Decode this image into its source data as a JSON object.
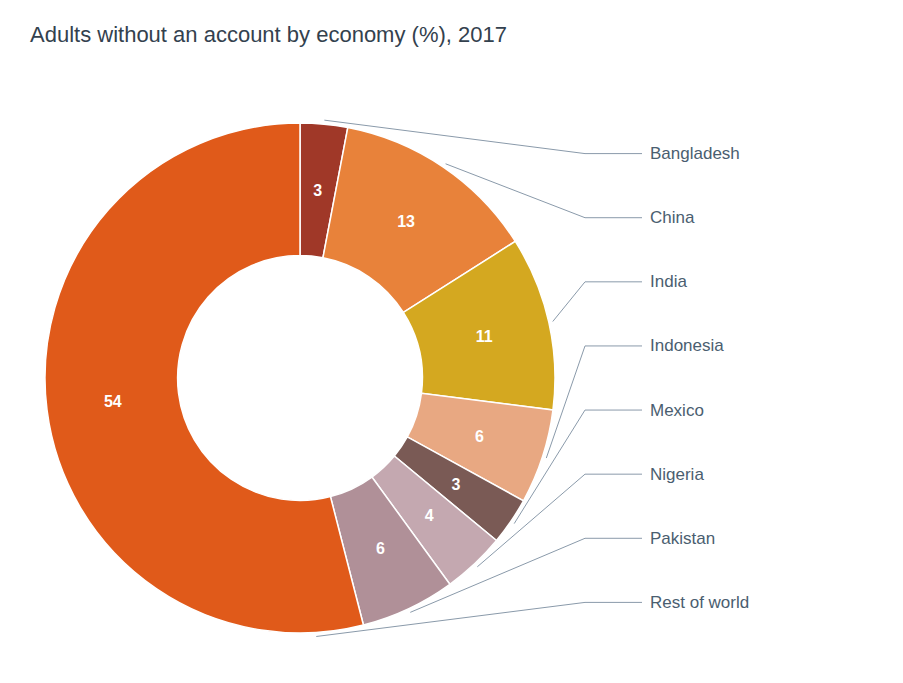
{
  "chart_data": {
    "type": "pie",
    "title": "Adults without an account by economy (%), 2017",
    "categories": [
      "Bangladesh",
      "China",
      "India",
      "Indonesia",
      "Mexico",
      "Nigeria",
      "Pakistan",
      "Rest of world"
    ],
    "values": [
      3,
      13,
      11,
      6,
      3,
      4,
      6,
      54
    ],
    "colors": [
      "#a03828",
      "#e8823a",
      "#d4a820",
      "#e8a882",
      "#7a5a55",
      "#c4a8b0",
      "#b09098",
      "#e05a1a"
    ],
    "data_labels": true
  }
}
